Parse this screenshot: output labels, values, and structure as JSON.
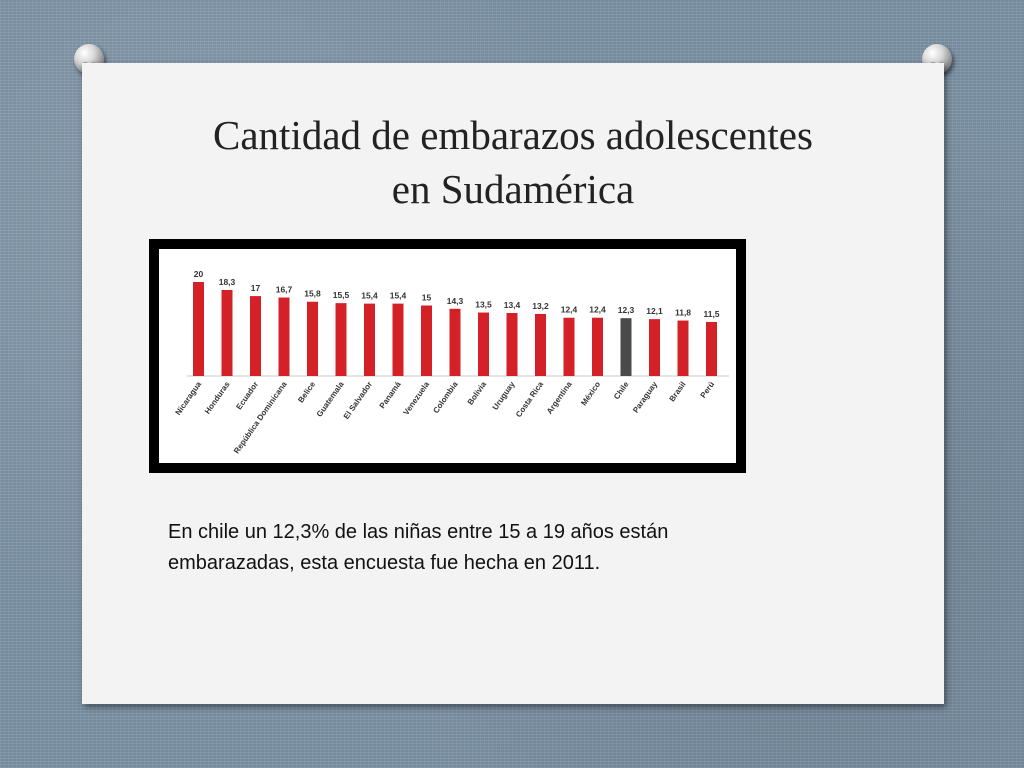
{
  "slide": {
    "title_line1": "Cantidad de embarazos adolescentes",
    "title_line2": "en Sudamérica",
    "caption": "En chile un 12,3%  de las niñas entre 15 a 19 años están embarazadas, esta encuesta fue hecha en 2011."
  },
  "chart_data": {
    "type": "bar",
    "title": "",
    "xlabel": "",
    "ylabel": "",
    "categories": [
      "Nicaragua",
      "Honduras",
      "Ecuador",
      "República Dominicana",
      "Belice",
      "Guatemala",
      "El Salvador",
      "Panamá",
      "Venezuela",
      "Colombia",
      "Bolivia",
      "Uruguay",
      "Costa Rica",
      "Argentina",
      "México",
      "Chile",
      "Paraguay",
      "Brasil",
      "Perú"
    ],
    "values": [
      20,
      18.3,
      17,
      16.7,
      15.8,
      15.5,
      15.4,
      15.4,
      15,
      14.3,
      13.5,
      13.4,
      13.2,
      12.4,
      12.4,
      12.3,
      12.1,
      11.8,
      11.5
    ],
    "value_labels": [
      "20",
      "18,3",
      "17",
      "16,7",
      "15,8",
      "15,5",
      "15,4",
      "15,4",
      "15",
      "14,3",
      "13,5",
      "13,4",
      "13,2",
      "12,4",
      "12,4",
      "12,3",
      "12,1",
      "11,8",
      "11,5"
    ],
    "ylim": [
      0,
      20
    ],
    "grid": false,
    "legend": "none",
    "colors": {
      "bar": "#d42027",
      "highlight": "#4a4a4a",
      "label": "#333333"
    },
    "highlight_category": "Chile"
  }
}
